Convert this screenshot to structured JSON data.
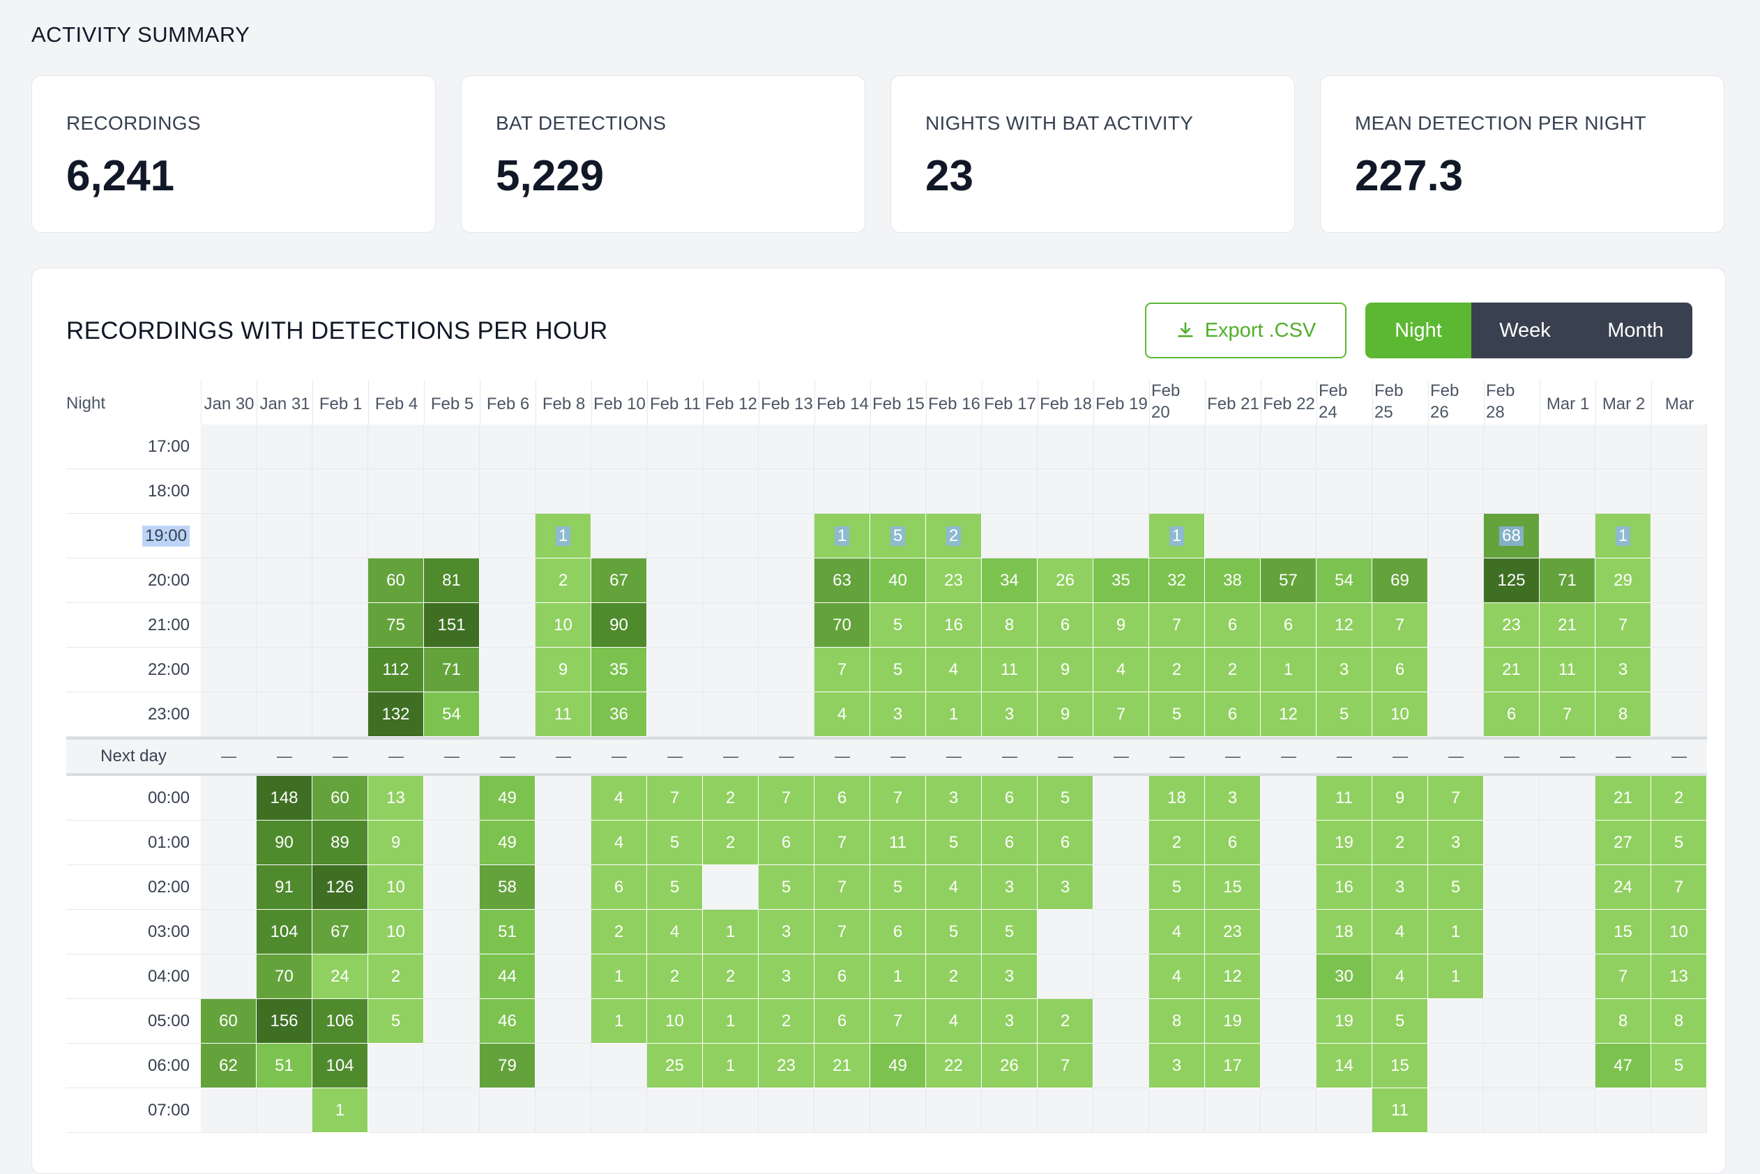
{
  "page": {
    "section_title": "ACTIVITY SUMMARY"
  },
  "stats": [
    {
      "label": "RECORDINGS",
      "value": "6,241"
    },
    {
      "label": "BAT DETECTIONS",
      "value": "5,229"
    },
    {
      "label": "NIGHTS WITH BAT ACTIVITY",
      "value": "23"
    },
    {
      "label": "MEAN DETECTION PER NIGHT",
      "value": "227.3"
    }
  ],
  "panel": {
    "title": "RECORDINGS WITH DETECTIONS PER HOUR",
    "export_label": "Export .CSV",
    "export_icon": "download-icon",
    "view_options": [
      "Night",
      "Week",
      "Month"
    ],
    "active_view": "Night"
  },
  "colors": {
    "accent": "#5cb832",
    "segment_inactive": "#394150",
    "scale": [
      "#90d060",
      "#7cc24f",
      "#64a33c",
      "#4f8a2d",
      "#3e6f23"
    ]
  },
  "heatmap": {
    "corner_label": "Night",
    "next_day_label": "Next day",
    "dash": "—",
    "nights": [
      "Jan 30",
      "Jan 31",
      "Feb 1",
      "Feb 4",
      "Feb 5",
      "Feb 6",
      "Feb 8",
      "Feb 10",
      "Feb 11",
      "Feb 12",
      "Feb 13",
      "Feb 14",
      "Feb 15",
      "Feb 16",
      "Feb 17",
      "Feb 18",
      "Feb 19",
      "Feb\n20",
      "Feb 21",
      "Feb 22",
      "Feb\n24",
      "Feb\n25",
      "Feb\n26",
      "Feb\n28",
      "Mar 1",
      "Mar 2",
      "Mar"
    ],
    "evening_hours": [
      "17:00",
      "18:00",
      "19:00",
      "20:00",
      "21:00",
      "22:00",
      "23:00"
    ],
    "morning_hours": [
      "00:00",
      "01:00",
      "02:00",
      "03:00",
      "04:00",
      "05:00",
      "06:00",
      "07:00"
    ],
    "highlighted_hour": "19:00",
    "evening_values": [
      [
        null,
        null,
        null,
        null,
        null,
        null,
        null,
        null,
        null,
        null,
        null,
        null,
        null,
        null,
        null,
        null,
        null,
        null,
        null,
        null,
        null,
        null,
        null,
        null,
        null,
        null,
        null
      ],
      [
        null,
        null,
        null,
        null,
        null,
        null,
        null,
        null,
        null,
        null,
        null,
        null,
        null,
        null,
        null,
        null,
        null,
        null,
        null,
        null,
        null,
        null,
        null,
        null,
        null,
        null,
        null
      ],
      [
        null,
        null,
        null,
        null,
        null,
        null,
        1,
        null,
        null,
        null,
        null,
        1,
        5,
        2,
        null,
        null,
        null,
        1,
        null,
        null,
        null,
        null,
        null,
        68,
        null,
        1,
        null
      ],
      [
        null,
        null,
        null,
        60,
        81,
        null,
        2,
        67,
        null,
        null,
        null,
        63,
        40,
        23,
        34,
        26,
        35,
        32,
        38,
        57,
        54,
        69,
        null,
        125,
        71,
        29,
        null
      ],
      [
        null,
        null,
        null,
        75,
        151,
        null,
        10,
        90,
        null,
        null,
        null,
        70,
        5,
        16,
        8,
        6,
        9,
        7,
        6,
        6,
        12,
        7,
        null,
        23,
        21,
        7,
        null
      ],
      [
        null,
        null,
        null,
        112,
        71,
        null,
        9,
        35,
        null,
        null,
        null,
        7,
        5,
        4,
        11,
        9,
        4,
        2,
        2,
        1,
        3,
        6,
        null,
        21,
        11,
        3,
        null
      ],
      [
        null,
        null,
        null,
        132,
        54,
        null,
        11,
        36,
        null,
        null,
        null,
        4,
        3,
        1,
        3,
        9,
        7,
        5,
        6,
        12,
        5,
        10,
        null,
        6,
        7,
        8,
        null
      ]
    ],
    "morning_values": [
      [
        null,
        148,
        60,
        13,
        null,
        49,
        null,
        4,
        7,
        2,
        7,
        6,
        7,
        3,
        6,
        5,
        null,
        18,
        3,
        null,
        11,
        9,
        7,
        null,
        null,
        21,
        2
      ],
      [
        null,
        90,
        89,
        9,
        null,
        49,
        null,
        4,
        5,
        2,
        6,
        7,
        11,
        5,
        6,
        6,
        null,
        2,
        6,
        null,
        19,
        2,
        3,
        null,
        null,
        27,
        5
      ],
      [
        null,
        91,
        126,
        10,
        null,
        58,
        null,
        6,
        5,
        null,
        5,
        7,
        5,
        4,
        3,
        3,
        null,
        5,
        15,
        null,
        16,
        3,
        5,
        null,
        null,
        24,
        7
      ],
      [
        null,
        104,
        67,
        10,
        null,
        51,
        null,
        2,
        4,
        1,
        3,
        7,
        6,
        5,
        5,
        null,
        null,
        4,
        23,
        null,
        18,
        4,
        1,
        null,
        null,
        15,
        10
      ],
      [
        null,
        70,
        24,
        2,
        null,
        44,
        null,
        1,
        2,
        2,
        3,
        6,
        1,
        2,
        3,
        null,
        null,
        4,
        12,
        null,
        30,
        4,
        1,
        null,
        null,
        7,
        13
      ],
      [
        60,
        156,
        106,
        5,
        null,
        46,
        null,
        1,
        10,
        1,
        2,
        6,
        7,
        4,
        3,
        2,
        null,
        8,
        19,
        null,
        19,
        5,
        null,
        null,
        null,
        8,
        8
      ],
      [
        62,
        51,
        104,
        null,
        null,
        79,
        null,
        null,
        25,
        1,
        23,
        21,
        49,
        22,
        26,
        7,
        null,
        3,
        17,
        null,
        14,
        15,
        null,
        null,
        null,
        47,
        5
      ],
      [
        null,
        null,
        1,
        null,
        null,
        null,
        null,
        null,
        null,
        null,
        null,
        null,
        null,
        null,
        null,
        null,
        null,
        null,
        null,
        null,
        null,
        11,
        null,
        null,
        null,
        null,
        null
      ]
    ],
    "selected_cells": [
      [
        2,
        6
      ],
      [
        2,
        11
      ],
      [
        2,
        12
      ],
      [
        2,
        13
      ],
      [
        2,
        17
      ],
      [
        2,
        23
      ],
      [
        2,
        25
      ]
    ]
  }
}
